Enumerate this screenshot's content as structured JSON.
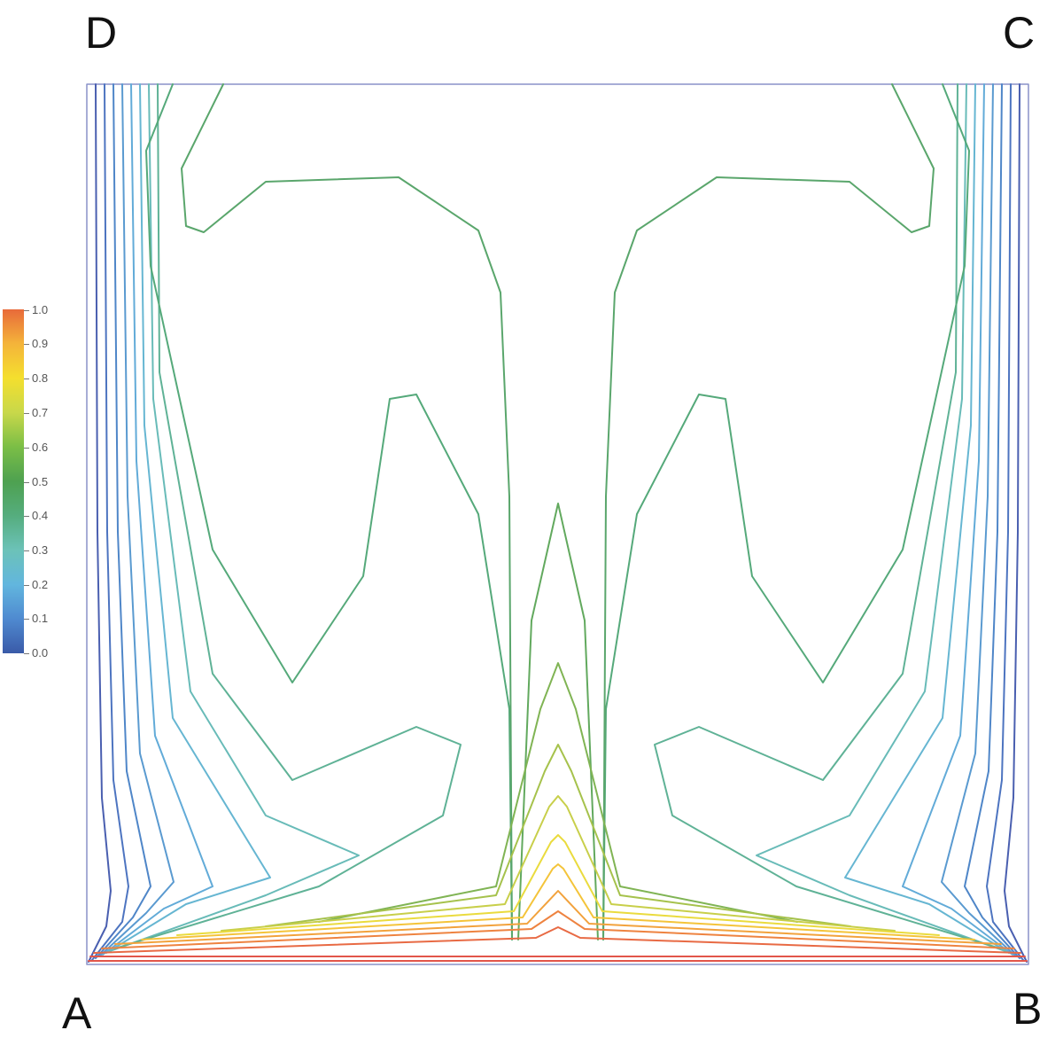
{
  "corners": {
    "a": "A",
    "b": "B",
    "c": "C",
    "d": "D"
  },
  "colorbar": {
    "ticks": [
      "1.0",
      "0.9",
      "0.8",
      "0.7",
      "0.6",
      "0.5",
      "0.4",
      "0.3",
      "0.2",
      "0.1",
      "0.0"
    ],
    "range": [
      0.0,
      1.0
    ],
    "colors": [
      "#3a5aa8",
      "#4f8ad0",
      "#62b6de",
      "#6cc2b8",
      "#55ad7e",
      "#4ea150",
      "#7bbe46",
      "#c8d84a",
      "#f4df2e",
      "#f4b43a",
      "#e86a3a"
    ]
  },
  "plot": {
    "type": "contour",
    "domain_border_color": "#8a92c8"
  }
}
